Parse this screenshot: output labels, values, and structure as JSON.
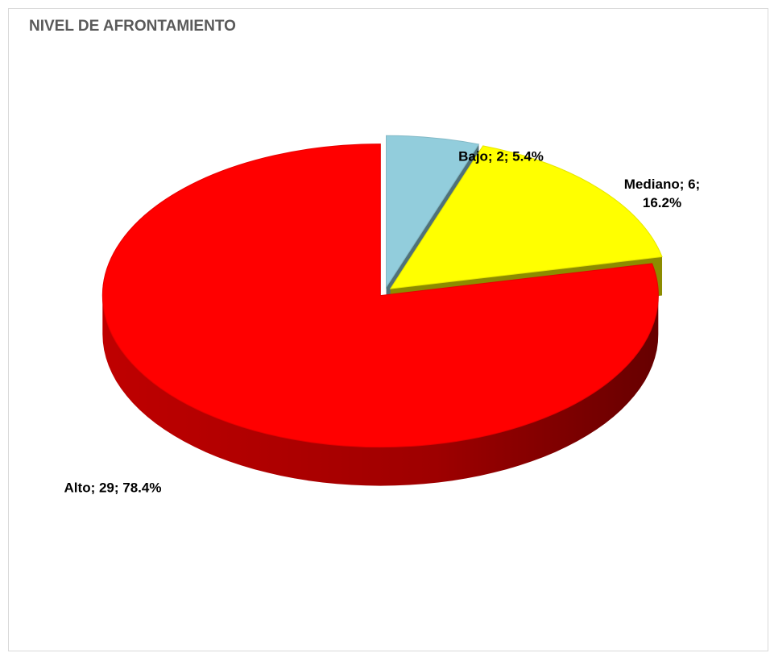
{
  "chart_data": {
    "type": "pie3d",
    "title": "NIVEL DE AFRONTAMIENTO",
    "categories": [
      "Bajo",
      "Mediano",
      "Alto"
    ],
    "values": [
      2,
      6,
      29
    ],
    "value_labels": [
      "Bajo; 2; 5.4%",
      "Mediano; 6; 16.2%",
      "Alto; 29; 78.4%"
    ],
    "colors": [
      "#92cddc",
      "#ffff00",
      "#ff0000"
    ]
  }
}
